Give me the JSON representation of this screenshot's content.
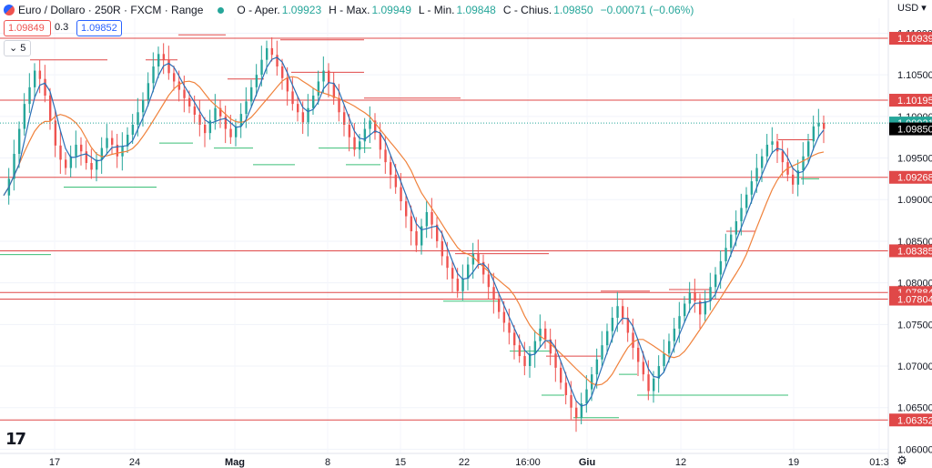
{
  "header": {
    "symbol_title": "Euro / Dollaro · 250R · FXCM · Range",
    "open_label": "O - Aper.",
    "open_value": "1.09923",
    "high_label": "H - Max.",
    "high_value": "1.09949",
    "low_label": "L - Min.",
    "low_value": "1.09848",
    "close_label": "C - Chius.",
    "close_value": "1.09850",
    "change_value": "−0.00071 (−0.06%)",
    "sell_price": "1.09849",
    "spread": "0.3",
    "buy_price": "1.09852",
    "indicators_count": "5",
    "currency": "USD"
  },
  "colors": {
    "up": "#26a69a",
    "down": "#ef5350",
    "ma_fast": "#2a6fb6",
    "ma_slow": "#f0823c",
    "level": "#e04848",
    "high_seg": "#e04848",
    "low_seg": "#3bbf77"
  },
  "chart_data": {
    "type": "candlestick-range",
    "title": "Euro / Dollaro · 250R · FXCM · Range",
    "y_axis": {
      "ticks": [
        "1.11000",
        "1.10500",
        "1.10000",
        "1.09500",
        "1.09000",
        "1.08500",
        "1.08000",
        "1.07500",
        "1.07000",
        "1.06500",
        "1.06000"
      ],
      "range": [
        1.0595,
        1.1118
      ]
    },
    "x_axis": {
      "ticks": [
        "17",
        "24",
        "Mag",
        "8",
        "15",
        "22",
        "16:00",
        "Giu",
        "12",
        "19",
        "01:3"
      ]
    },
    "horizontal_levels": [
      "1.10939",
      "1.10195",
      "1.09268",
      "1.08385",
      "1.07884",
      "1.07804",
      "1.06352"
    ],
    "last_price_labels": {
      "bid": "1.09921",
      "last": "1.09850"
    },
    "price_path": [
      1.0905,
      1.0925,
      1.0955,
      1.0985,
      1.1015,
      1.1035,
      1.1055,
      1.1045,
      1.1025,
      1.0995,
      1.0965,
      1.0948,
      1.0938,
      1.0952,
      1.0966,
      1.0958,
      1.0944,
      1.0936,
      1.0948,
      1.0962,
      1.0974,
      1.0966,
      1.0952,
      1.0964,
      1.0978,
      1.099,
      1.1005,
      1.102,
      1.104,
      1.106,
      1.1075,
      1.1068,
      1.1052,
      1.1042,
      1.1032,
      1.1022,
      1.1012,
      1.1002,
      1.099,
      1.098,
      1.0995,
      1.101,
      1.1,
      1.0985,
      1.0975,
      1.0988,
      1.1003,
      1.1018,
      1.1035,
      1.105,
      1.1068,
      1.1082,
      1.1074,
      1.106,
      1.1046,
      1.103,
      1.1015,
      1.1005,
      1.0993,
      1.101,
      1.1025,
      1.1042,
      1.1055,
      1.104,
      1.1022,
      1.1005,
      1.099,
      1.0975,
      1.096,
      1.097,
      1.0985,
      1.0995,
      1.098,
      1.096,
      1.0945,
      1.093,
      1.0915,
      1.0898,
      1.088,
      1.0862,
      1.0845,
      1.0868,
      1.0885,
      1.087,
      1.085,
      1.0832,
      1.0818,
      1.0805,
      1.079,
      1.0805,
      1.0822,
      1.0835,
      1.0825,
      1.081,
      1.0795,
      1.078,
      1.0765,
      1.0752,
      1.074,
      1.0725,
      1.0712,
      1.07,
      1.0715,
      1.073,
      1.0745,
      1.0732,
      1.0715,
      1.0698,
      1.068,
      1.0665,
      1.065,
      1.0638,
      1.0655,
      1.0672,
      1.069,
      1.0708,
      1.0725,
      1.0742,
      1.0758,
      1.0772,
      1.0758,
      1.074,
      1.0722,
      1.0705,
      1.069,
      1.067,
      1.0685,
      1.07,
      1.0715,
      1.073,
      1.0745,
      1.076,
      1.0775,
      1.0788,
      1.0778,
      1.0762,
      1.0778,
      1.0795,
      1.081,
      1.0826,
      1.0842,
      1.0858,
      1.0874,
      1.089,
      1.0906,
      1.0922,
      1.0938,
      1.0952,
      1.0966,
      1.097,
      1.0958,
      1.0945,
      1.093,
      1.0918,
      1.0935,
      1.0952,
      1.097,
      1.0988,
      1.0992,
      1.0985
    ]
  }
}
